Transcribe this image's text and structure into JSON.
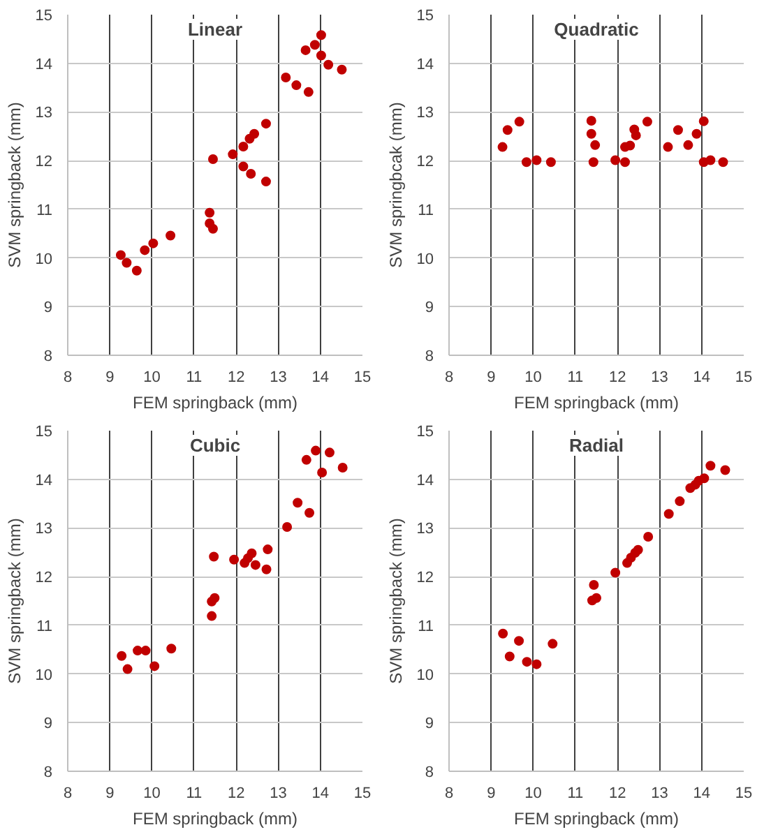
{
  "chart_data": [
    {
      "type": "scatter",
      "title": "Linear",
      "xlabel": "FEM springback (mm)",
      "ylabel": "SVM springback (mm)",
      "xlim": [
        8,
        15
      ],
      "ylim": [
        8,
        15
      ],
      "xticks": [
        8,
        9,
        10,
        11,
        12,
        13,
        14,
        15
      ],
      "yticks": [
        8,
        9,
        10,
        11,
        12,
        13,
        14,
        15
      ],
      "grid": true,
      "marker": "circle",
      "series": [
        {
          "color": "#c00000",
          "x": [
            9.26,
            9.4,
            9.64,
            9.83,
            10.03,
            10.44,
            11.37,
            11.37,
            11.45,
            11.45,
            11.92,
            12.17,
            12.17,
            12.32,
            12.43,
            12.35,
            12.71,
            12.71,
            13.18,
            13.43,
            13.72,
            13.65,
            13.87,
            14.02,
            14.02,
            14.19,
            14.51
          ],
          "values": [
            10.06,
            9.9,
            9.74,
            10.16,
            10.3,
            10.46,
            10.93,
            10.71,
            10.6,
            12.03,
            12.13,
            12.29,
            11.88,
            12.45,
            12.55,
            11.73,
            12.76,
            11.57,
            13.71,
            13.55,
            13.41,
            14.27,
            14.38,
            14.58,
            14.16,
            13.97,
            13.87
          ]
        }
      ]
    },
    {
      "type": "scatter",
      "title": "Quadratic",
      "xlabel": "FEM springback (mm)",
      "ylabel": "SVM springbcak (mm)",
      "xlim": [
        8,
        15
      ],
      "ylim": [
        8,
        15
      ],
      "xticks": [
        8,
        9,
        10,
        11,
        12,
        13,
        14,
        15
      ],
      "yticks": [
        8,
        9,
        10,
        11,
        12,
        13,
        14,
        15
      ],
      "grid": true,
      "marker": "circle",
      "series": [
        {
          "color": "#c00000",
          "x": [
            9.27,
            9.39,
            9.67,
            9.84,
            10.08,
            10.42,
            11.38,
            11.38,
            11.47,
            11.43,
            11.95,
            12.18,
            12.3,
            12.18,
            12.4,
            12.44,
            12.71,
            13.2,
            13.44,
            13.68,
            13.88,
            14.05,
            14.05,
            14.21,
            14.51
          ],
          "values": [
            12.28,
            12.63,
            12.8,
            11.97,
            12.01,
            11.97,
            12.82,
            12.55,
            12.32,
            11.97,
            12.01,
            12.28,
            12.31,
            11.97,
            12.64,
            12.52,
            12.8,
            12.28,
            12.63,
            12.32,
            12.55,
            12.81,
            11.97,
            12.01,
            11.97
          ]
        }
      ]
    },
    {
      "type": "scatter",
      "title": "Cubic",
      "xlabel": "FEM springback (mm)",
      "ylabel": "SVM springback (mm)",
      "xlim": [
        8,
        15
      ],
      "ylim": [
        8,
        15
      ],
      "xticks": [
        8,
        9,
        10,
        11,
        12,
        13,
        14,
        15
      ],
      "yticks": [
        8,
        9,
        10,
        11,
        12,
        13,
        14,
        15
      ],
      "grid": true,
      "marker": "circle",
      "series": [
        {
          "color": "#c00000",
          "x": [
            9.28,
            9.42,
            9.66,
            9.85,
            10.06,
            10.46,
            11.42,
            11.42,
            11.49,
            11.47,
            11.95,
            12.2,
            12.28,
            12.37,
            12.46,
            12.72,
            12.75,
            13.21,
            13.46,
            13.74,
            13.67,
            13.89,
            14.04,
            14.22,
            14.53
          ],
          "values": [
            10.37,
            10.1,
            10.48,
            10.48,
            10.16,
            10.52,
            11.19,
            11.49,
            11.56,
            12.41,
            12.35,
            12.28,
            12.38,
            12.48,
            12.24,
            12.15,
            12.56,
            13.02,
            13.52,
            13.31,
            14.4,
            14.59,
            14.14,
            14.55,
            14.24
          ]
        }
      ]
    },
    {
      "type": "scatter",
      "title": "Radial",
      "xlabel": "FEM springback (mm)",
      "ylabel": "SVM springback (mm)",
      "xlim": [
        8,
        15
      ],
      "ylim": [
        8,
        15
      ],
      "xticks": [
        8,
        9,
        10,
        11,
        12,
        13,
        14,
        15
      ],
      "yticks": [
        8,
        9,
        10,
        11,
        12,
        13,
        14,
        15
      ],
      "grid": true,
      "marker": "circle",
      "series": [
        {
          "color": "#c00000",
          "x": [
            9.28,
            9.44,
            9.66,
            9.85,
            10.08,
            10.46,
            11.44,
            11.4,
            11.5,
            11.95,
            12.23,
            12.32,
            12.42,
            12.49,
            12.73,
            13.22,
            13.48,
            13.73,
            13.85,
            13.93,
            14.06,
            14.21,
            14.56
          ],
          "values": [
            10.83,
            10.36,
            10.68,
            10.25,
            10.2,
            10.62,
            11.83,
            11.51,
            11.56,
            12.08,
            12.28,
            12.39,
            12.49,
            12.55,
            12.82,
            13.29,
            13.55,
            13.82,
            13.89,
            13.97,
            14.02,
            14.28,
            14.19
          ]
        }
      ]
    }
  ]
}
